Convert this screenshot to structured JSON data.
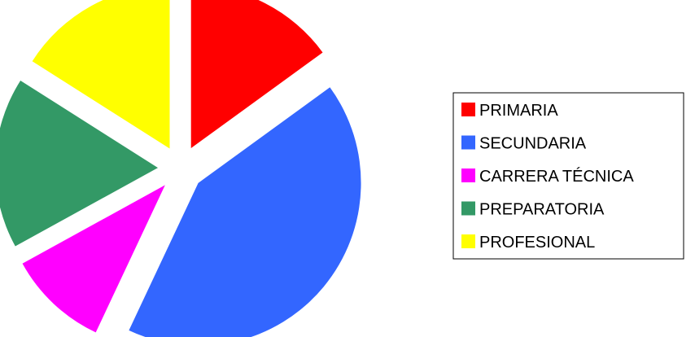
{
  "chart_data": {
    "type": "pie",
    "title": "",
    "exploded": true,
    "legend_position": "right",
    "categories": [
      "PRIMARIA",
      "SECUNDARIA",
      "CARRERA TÉCNICA",
      "PREPARATORIA",
      "PROFESIONAL"
    ],
    "values": [
      15,
      42,
      10,
      17,
      16
    ],
    "colors": [
      "#ff0000",
      "#3366ff",
      "#ff00ff",
      "#339966",
      "#ffff00"
    ]
  }
}
